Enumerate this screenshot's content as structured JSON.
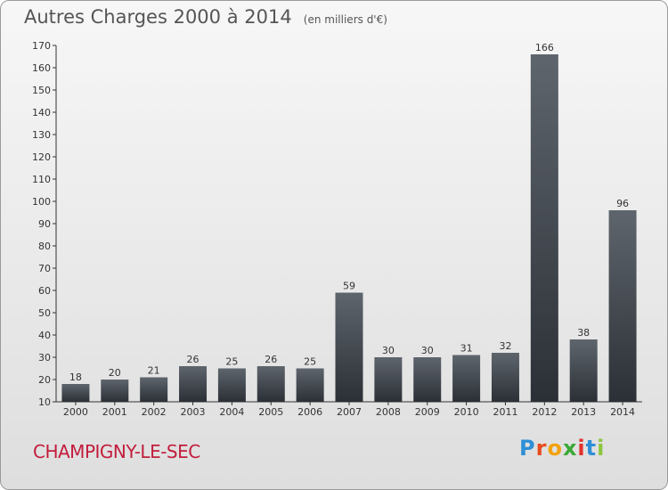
{
  "title": "Autres Charges 2000 à 2014",
  "subtitle": "(en milliers d'€)",
  "place": "CHAMPIGNY-LE-SEC",
  "logo": {
    "letters": [
      "P",
      "r",
      "o",
      "x",
      "i",
      "t",
      "i"
    ],
    "colors": [
      "#2e8fd6",
      "#e84c1f",
      "#f2a20c",
      "#3aa935",
      "#e2322b",
      "#2e8fd6",
      "#8dc63f"
    ]
  },
  "chart_data": {
    "type": "bar",
    "categories": [
      "2000",
      "2001",
      "2002",
      "2003",
      "2004",
      "2005",
      "2006",
      "2007",
      "2008",
      "2009",
      "2010",
      "2011",
      "2012",
      "2013",
      "2014"
    ],
    "values": [
      18,
      20,
      21,
      26,
      25,
      26,
      25,
      59,
      30,
      30,
      31,
      32,
      166,
      38,
      96
    ],
    "ylim": [
      10,
      170
    ],
    "yticks": [
      10,
      20,
      30,
      40,
      50,
      60,
      70,
      80,
      90,
      100,
      110,
      120,
      130,
      140,
      150,
      160,
      170
    ],
    "grid": false,
    "bar_color": "#4a5058"
  }
}
